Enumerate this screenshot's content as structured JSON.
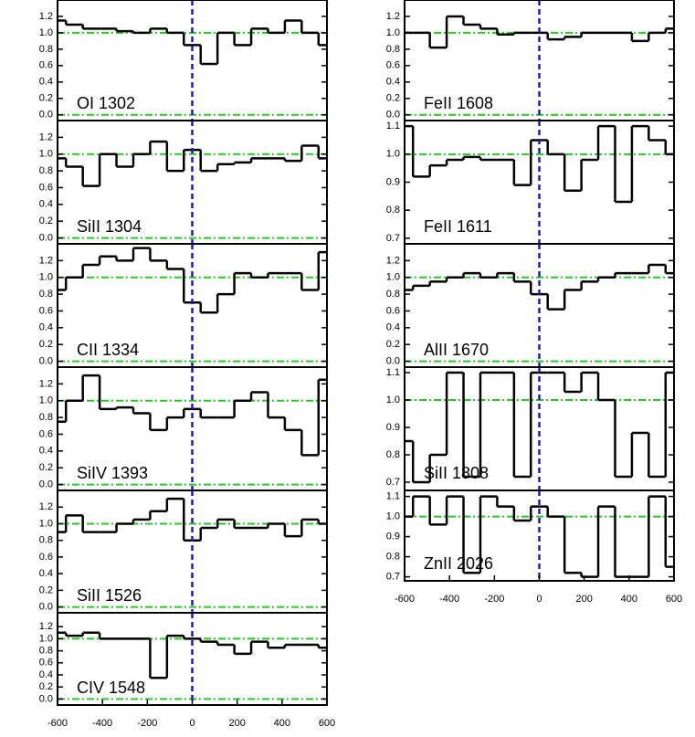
{
  "chart_data": [
    {
      "type": "step",
      "label": "OI 1302",
      "x": [
        -600,
        -525,
        -450,
        -375,
        -300,
        -225,
        -150,
        -75,
        0,
        75,
        150,
        225,
        300,
        375,
        450,
        525,
        600
      ],
      "values": [
        1.15,
        1.1,
        1.05,
        1.05,
        1.02,
        1.0,
        1.05,
        1.0,
        0.85,
        0.62,
        1.0,
        0.85,
        1.05,
        1.0,
        1.15,
        1.0,
        0.85
      ],
      "color": "#000000",
      "xlim": [
        -600,
        600
      ],
      "ylim": [
        -0.07,
        1.4
      ],
      "yticks": [
        {
          "value": 0,
          "label": "0.0"
        },
        0.2,
        0.4,
        0.6,
        0.8,
        {
          "value": 1,
          "label": "1.0"
        },
        1.2
      ],
      "hlines": [
        0,
        1
      ],
      "vlines": [
        0
      ]
    },
    {
      "type": "step",
      "label": "SiII 1304",
      "x": [
        -600,
        -525,
        -450,
        -375,
        -300,
        -225,
        -150,
        -75,
        0,
        75,
        150,
        225,
        300,
        375,
        450,
        525,
        600
      ],
      "values": [
        0.95,
        0.85,
        0.62,
        1.0,
        0.85,
        1.0,
        1.15,
        0.8,
        1.05,
        0.8,
        0.88,
        0.9,
        0.95,
        0.95,
        0.92,
        1.1,
        0.95
      ],
      "color": "#000000",
      "xlim": [
        -600,
        600
      ],
      "ylim": [
        -0.07,
        1.4
      ],
      "yticks": [
        {
          "value": 0,
          "label": "0.0"
        },
        0.2,
        0.4,
        0.6,
        0.8,
        {
          "value": 1,
          "label": "1.0"
        },
        1.2
      ],
      "hlines": [
        0,
        1
      ],
      "vlines": [
        0
      ]
    },
    {
      "type": "step",
      "label": "CII 1334",
      "x": [
        -600,
        -525,
        -450,
        -375,
        -300,
        -225,
        -150,
        -75,
        0,
        75,
        150,
        225,
        300,
        375,
        450,
        525,
        600
      ],
      "values": [
        0.85,
        1.0,
        1.15,
        1.25,
        1.2,
        1.35,
        1.2,
        1.1,
        0.7,
        0.58,
        0.8,
        1.05,
        1.0,
        1.05,
        1.05,
        0.85,
        1.3
      ],
      "color": "#000000",
      "xlim": [
        -600,
        600
      ],
      "ylim": [
        -0.07,
        1.4
      ],
      "yticks": [
        {
          "value": 0,
          "label": "0.0"
        },
        0.2,
        0.4,
        0.6,
        0.8,
        {
          "value": 1,
          "label": "1.0"
        },
        1.2
      ],
      "hlines": [
        0,
        1
      ],
      "vlines": [
        0
      ]
    },
    {
      "type": "step",
      "label": "SiIV 1393",
      "x": [
        -600,
        -525,
        -450,
        -375,
        -300,
        -225,
        -150,
        -75,
        0,
        75,
        150,
        225,
        300,
        375,
        450,
        525,
        600
      ],
      "values": [
        0.75,
        1.0,
        1.3,
        0.9,
        0.92,
        0.85,
        0.65,
        0.8,
        0.9,
        0.8,
        0.8,
        1.0,
        1.1,
        0.8,
        0.65,
        0.35,
        1.25
      ],
      "color": "#000000",
      "xlim": [
        -600,
        600
      ],
      "ylim": [
        -0.07,
        1.4
      ],
      "yticks": [
        {
          "value": 0,
          "label": "0.0"
        },
        0.2,
        0.4,
        0.6,
        0.8,
        {
          "value": 1,
          "label": "1.0"
        },
        1.2
      ],
      "hlines": [
        0,
        1
      ],
      "vlines": [
        0
      ]
    },
    {
      "type": "step",
      "label": "SiII 1526",
      "x": [
        -600,
        -525,
        -450,
        -375,
        -300,
        -225,
        -150,
        -75,
        0,
        75,
        150,
        225,
        300,
        375,
        450,
        525,
        600
      ],
      "values": [
        0.9,
        1.1,
        0.9,
        0.9,
        1.0,
        1.05,
        1.15,
        1.3,
        0.8,
        0.95,
        1.05,
        0.95,
        0.95,
        1.0,
        0.85,
        1.05,
        1.0
      ],
      "color": "#000000",
      "xlim": [
        -600,
        600
      ],
      "ylim": [
        -0.07,
        1.4
      ],
      "yticks": [
        {
          "value": 0,
          "label": "0.0"
        },
        0.2,
        0.4,
        0.6,
        0.8,
        {
          "value": 1,
          "label": "1.0"
        },
        1.2
      ],
      "hlines": [
        0,
        1
      ],
      "vlines": [
        0
      ]
    },
    {
      "type": "step",
      "label": "CIV 1548",
      "x": [
        -600,
        -525,
        -450,
        -375,
        -300,
        -225,
        -150,
        -75,
        0,
        75,
        150,
        225,
        300,
        375,
        450,
        525,
        600
      ],
      "values": [
        1.1,
        1.05,
        1.1,
        1.0,
        1.0,
        1.0,
        0.35,
        1.05,
        1.0,
        0.95,
        0.9,
        0.75,
        0.95,
        0.85,
        0.9,
        0.9,
        0.85
      ],
      "color": "#000000",
      "xlim": [
        -600,
        600
      ],
      "xticks": [
        -600,
        -400,
        -200,
        0,
        200,
        400,
        600
      ],
      "ylim": [
        -0.1,
        1.43
      ],
      "yticks": [
        {
          "value": 0,
          "label": "0.0"
        },
        0.2,
        0.4,
        0.6,
        0.8,
        {
          "value": 1,
          "label": "1.0"
        },
        1.2
      ],
      "hlines": [
        0,
        1
      ],
      "vlines": [
        0
      ]
    },
    {
      "type": "step",
      "label": "FeII 1608",
      "x": [
        -600,
        -525,
        -450,
        -375,
        -300,
        -225,
        -150,
        -75,
        0,
        75,
        150,
        225,
        300,
        375,
        450,
        525,
        600
      ],
      "values": [
        1.0,
        1.0,
        0.82,
        1.2,
        1.1,
        1.05,
        0.98,
        1.0,
        1.0,
        0.92,
        0.95,
        1.0,
        1.0,
        1.0,
        0.9,
        1.0,
        1.05
      ],
      "color": "#000000",
      "xlim": [
        -600,
        600
      ],
      "ylim": [
        -0.07,
        1.4
      ],
      "yticks": [
        {
          "value": 0,
          "label": "0.0"
        },
        0.2,
        0.4,
        0.6,
        0.8,
        {
          "value": 1,
          "label": "1.0"
        },
        1.2
      ],
      "hlines": [
        0,
        1
      ],
      "vlines": [
        0
      ]
    },
    {
      "type": "step",
      "label": "FeII 1611",
      "x": [
        -600,
        -525,
        -450,
        -375,
        -300,
        -225,
        -150,
        -75,
        0,
        75,
        150,
        225,
        300,
        375,
        450,
        525,
        600
      ],
      "values": [
        1.1,
        0.92,
        0.96,
        0.98,
        0.99,
        0.98,
        0.98,
        0.89,
        1.05,
        1.0,
        0.87,
        0.98,
        1.1,
        0.83,
        1.1,
        1.05,
        1.0
      ],
      "color": "#000000",
      "xlim": [
        -600,
        600
      ],
      "ylim": [
        0.68,
        1.12
      ],
      "yticks": [
        0.7,
        0.8,
        0.9,
        {
          "value": 1,
          "label": "1.0"
        },
        1.1
      ],
      "hlines": [
        1
      ],
      "vlines": [
        0
      ]
    },
    {
      "type": "step",
      "label": "AlII 1670",
      "x": [
        -600,
        -525,
        -450,
        -375,
        -300,
        -225,
        -150,
        -75,
        0,
        75,
        150,
        225,
        300,
        375,
        450,
        525,
        600
      ],
      "values": [
        0.85,
        0.9,
        0.95,
        1.0,
        1.05,
        1.0,
        1.05,
        0.95,
        0.8,
        0.62,
        0.85,
        0.95,
        1.0,
        1.05,
        1.05,
        1.15,
        1.05
      ],
      "color": "#000000",
      "xlim": [
        -600,
        600
      ],
      "ylim": [
        -0.07,
        1.4
      ],
      "yticks": [
        {
          "value": 0,
          "label": "0.0"
        },
        0.2,
        0.4,
        0.6,
        0.8,
        {
          "value": 1,
          "label": "1.0"
        },
        1.2
      ],
      "hlines": [
        0,
        1
      ],
      "vlines": [
        0
      ]
    },
    {
      "type": "step",
      "label": "SiII 1808",
      "x": [
        -600,
        -525,
        -450,
        -375,
        -300,
        -225,
        -150,
        -75,
        0,
        75,
        150,
        225,
        300,
        375,
        450,
        525,
        600
      ],
      "values": [
        0.85,
        0.7,
        0.8,
        1.1,
        0.72,
        1.1,
        1.1,
        0.72,
        1.1,
        1.1,
        1.03,
        1.1,
        1.0,
        0.72,
        0.88,
        0.72,
        1.1
      ],
      "color": "#000000",
      "xlim": [
        -600,
        600
      ],
      "ylim": [
        0.67,
        1.12
      ],
      "yticks": [
        0.7,
        0.8,
        0.9,
        {
          "value": 1,
          "label": "1.0"
        },
        1.1
      ],
      "hlines": [
        1
      ],
      "vlines": [
        0
      ]
    },
    {
      "type": "step",
      "label": "ZnII 2026",
      "x": [
        -600,
        -525,
        -450,
        -375,
        -300,
        -225,
        -150,
        -75,
        0,
        75,
        150,
        225,
        300,
        375,
        450,
        525,
        600
      ],
      "values": [
        1.0,
        1.1,
        0.96,
        1.1,
        0.72,
        1.1,
        1.05,
        0.98,
        1.05,
        1.0,
        0.72,
        0.7,
        1.05,
        0.7,
        0.7,
        1.1,
        0.75
      ],
      "color": "#000000",
      "xlim": [
        -600,
        600
      ],
      "xticks": [
        -600,
        -400,
        -200,
        0,
        200,
        400,
        600
      ],
      "ylim": [
        0.68,
        1.13
      ],
      "yticks": [
        0.7,
        0.8,
        0.9,
        {
          "value": 1,
          "label": "1.0"
        },
        1.1
      ],
      "hlines": [
        1
      ],
      "vlines": [
        0
      ]
    }
  ]
}
